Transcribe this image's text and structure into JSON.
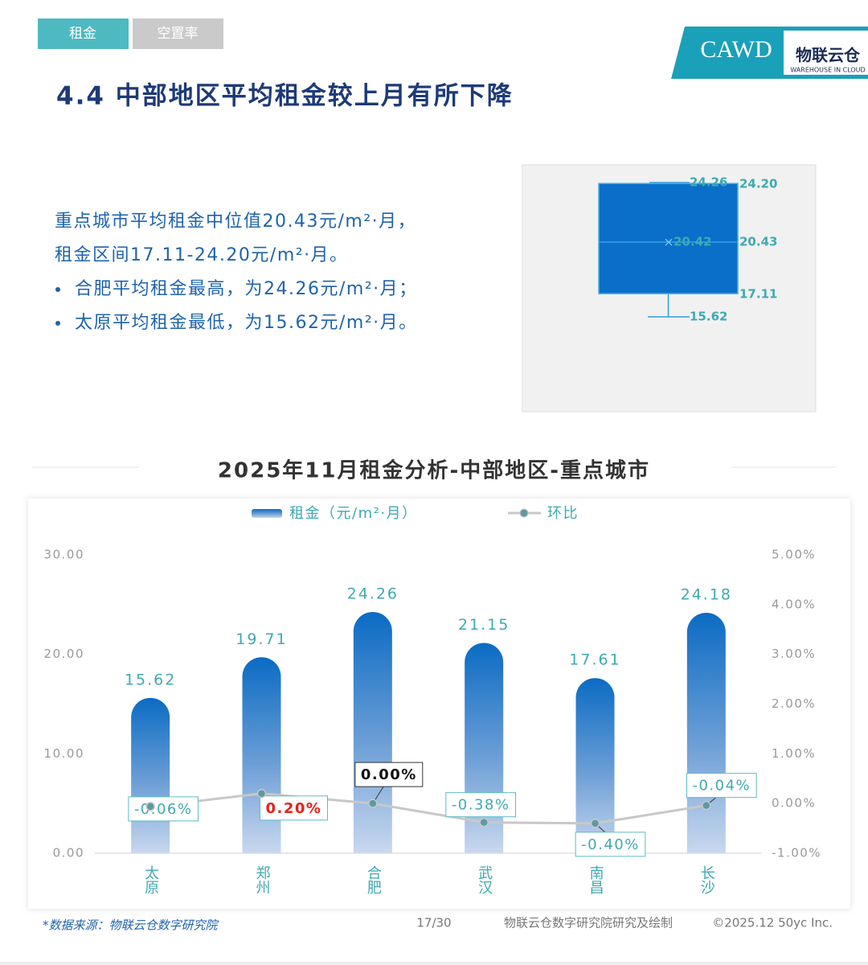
{
  "tabs": [
    "租金",
    "空置率"
  ],
  "logo": {
    "mark": "CAWD",
    "brand": "物联云仓",
    "brand_en": "WAREHOUSE IN CLOUD"
  },
  "heading": "4.4 中部地区平均租金较上月有所下降",
  "summary": [
    "重点城市平均租金中位值20.43元/m²·月，",
    "租金区间17.11-24.20元/m²·月。"
  ],
  "bullets": [
    "合肥平均租金最高，为24.26元/m²·月；",
    "太原平均租金最低，为15.62元/m²·月。"
  ],
  "chart_data": [
    {
      "type": "box",
      "color": "#0a6fc9",
      "values": [
        15.62,
        17.11,
        20.43,
        20.42,
        24.2,
        24.26
      ],
      "value_labels": [
        "15.62",
        "17.11",
        "20.43",
        "20.42",
        "24.20",
        "24.26"
      ]
    },
    {
      "type": "bar",
      "title": "2025年11月租金分析-中部地区-重点城市",
      "categories": [
        "太原",
        "郑州",
        "合肥",
        "武汉",
        "南昌",
        "长沙"
      ],
      "series": [
        {
          "name": "租金（元/m²·月）",
          "color": "#0b6bc4",
          "values": [
            15.62,
            19.71,
            24.26,
            21.15,
            17.61,
            24.18
          ]
        },
        {
          "name": "环比",
          "type": "line",
          "axis": "y2",
          "color": "#c8c8c8",
          "values": [
            -0.06,
            0.2,
            0,
            -0.38,
            -0.4,
            -0.04
          ],
          "value_labels": [
            "-0.06%",
            "0.20%",
            "0.00%",
            "-0.38%",
            "-0.40%",
            "-0.04%"
          ]
        }
      ],
      "ylim": [
        0,
        30
      ],
      "yticks": [
        {
          "value": 0,
          "label": "0.00"
        },
        {
          "value": 10,
          "label": "10.00"
        },
        {
          "value": 20,
          "label": "20.00"
        },
        {
          "value": 30,
          "label": "30.00"
        }
      ],
      "y2lim": [
        -1,
        5
      ],
      "y2ticks": [
        {
          "value": -1,
          "label": "-1.00%"
        },
        {
          "value": 0,
          "label": "0.00%"
        },
        {
          "value": 1,
          "label": "1.00%"
        },
        {
          "value": 2,
          "label": "2.00%"
        },
        {
          "value": 3,
          "label": "3.00%"
        },
        {
          "value": 4,
          "label": "4.00%"
        },
        {
          "value": 5,
          "label": "5.00%"
        }
      ]
    }
  ],
  "footer": {
    "source": "*数据来源：物联云仓数字研究院",
    "page": "17/30",
    "credit": "物联云仓数字研究院研究及绘制",
    "copyright": "©2025.12 50yc Inc."
  }
}
